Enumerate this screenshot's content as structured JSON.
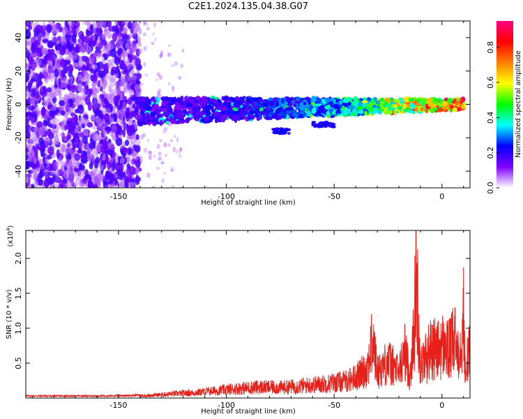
{
  "title": "C2E1.2024.135.04.38.G07",
  "colors": {
    "snr_line": "#e8201a",
    "frame": "#000000"
  },
  "chart_data": [
    {
      "type": "heatmap",
      "xlabel": "Height of straight line (km)",
      "ylabel": "Frequency (Hz)",
      "xlim": [
        -193,
        13
      ],
      "ylim": [
        -50,
        50
      ],
      "xticks": [
        -150,
        -100,
        -50,
        0
      ],
      "xtick_labels": [
        "-150",
        "-100",
        "-50",
        "0"
      ],
      "yticks": [
        -40,
        -20,
        0,
        20,
        40
      ],
      "ytick_labels": [
        "-40",
        "-20",
        "0",
        "20",
        "40"
      ],
      "colorbar": {
        "label": "Normalized spectral amplitude",
        "range": [
          0,
          0.95
        ],
        "ticks": [
          0.0,
          0.2,
          0.4,
          0.6,
          0.8
        ],
        "tick_labels": [
          "0.0",
          "0.2",
          "0.4",
          "0.6",
          "0.8"
        ],
        "colormap": [
          "#ffffff",
          "#8000ff",
          "#0000ff",
          "#00ffff",
          "#00ff00",
          "#ffff00",
          "#ff8000",
          "#ff0000",
          "#ff0080"
        ]
      },
      "regions": [
        {
          "x_range": [
            -193,
            -140
          ],
          "freq_range": [
            -50,
            50
          ],
          "amplitude": 0.2,
          "description": ""
        },
        {
          "x_range": [
            -140,
            10
          ],
          "freq_center_start": -4,
          "freq_center_end": 0,
          "amplitude_start": 0.2,
          "amplitude_end": 0.9
        }
      ]
    },
    {
      "type": "line",
      "xlabel": "Height of straight line (km)",
      "ylabel": "SNR (10 * v/v)",
      "y_multiplier": "(x10",
      "y_multiplier_exp": "4",
      "y_multiplier_close": ")",
      "xlim": [
        -193,
        13
      ],
      "ylim": [
        0,
        24000
      ],
      "xticks": [
        -150,
        -100,
        -50,
        0
      ],
      "xtick_labels": [
        "-150",
        "-100",
        "-50",
        "0"
      ],
      "yticks": [
        5000,
        10000,
        15000,
        20000
      ],
      "ytick_labels": [
        "0.5",
        "1.0",
        "1.5",
        "2.0"
      ],
      "series": [
        {
          "x": [
            -193,
            -180,
            -160,
            -145,
            -135,
            -125,
            -115,
            -105,
            -95,
            -85,
            -75,
            -65,
            -55,
            -45,
            -40,
            -35,
            -32,
            -30,
            -25,
            -20,
            -17,
            -15,
            -13,
            -12,
            -10,
            -8,
            -5,
            -2,
            0,
            3,
            6,
            8,
            10,
            11,
            12,
            13
          ],
          "values": [
            300,
            300,
            300,
            350,
            500,
            800,
            1000,
            1400,
            1800,
            2100,
            2000,
            2300,
            2700,
            3200,
            4000,
            5500,
            11000,
            5000,
            7000,
            5000,
            9000,
            4000,
            12000,
            24000,
            6000,
            7500,
            9500,
            9000,
            10000,
            9000,
            11000,
            9000,
            15500,
            2500,
            9000,
            8000
          ]
        }
      ]
    }
  ]
}
